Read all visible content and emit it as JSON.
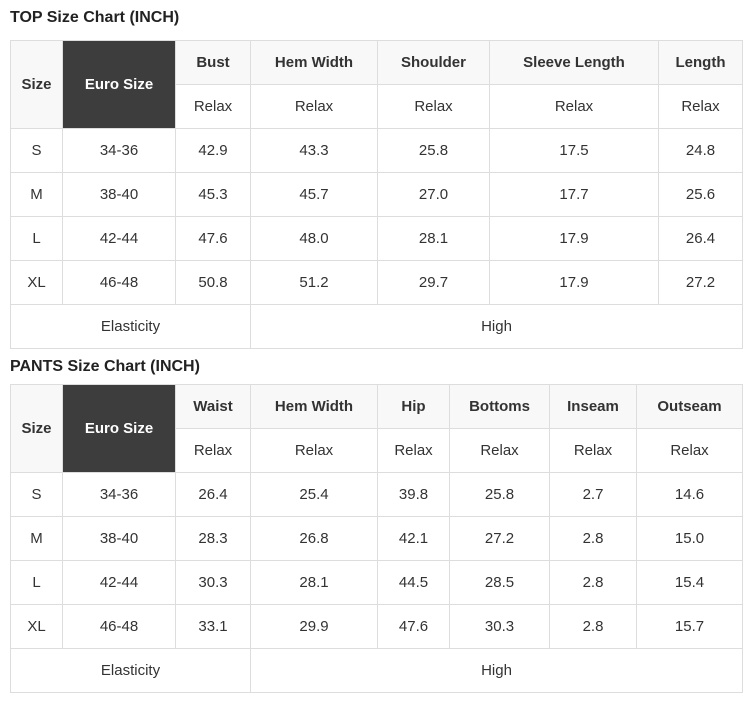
{
  "colors": {
    "dark_header_bg": "#3d3d3d",
    "dark_header_text": "#ffffff",
    "light_header_bg": "#f8f8f8",
    "border": "#dddddd",
    "text": "#333333",
    "title_text": "#222222"
  },
  "top_chart": {
    "title": "TOP Size Chart (INCH)",
    "size_header": "Size",
    "euro_size_header": "Euro Size",
    "measures": [
      {
        "name": "Bust",
        "fit": "Relax"
      },
      {
        "name": "Hem Width",
        "fit": "Relax"
      },
      {
        "name": "Shoulder",
        "fit": "Relax"
      },
      {
        "name": "Sleeve Length",
        "fit": "Relax"
      },
      {
        "name": "Length",
        "fit": "Relax"
      }
    ],
    "rows": [
      {
        "size": "S",
        "euro_size": "34-36",
        "values": [
          "42.9",
          "43.3",
          "25.8",
          "17.5",
          "24.8"
        ]
      },
      {
        "size": "M",
        "euro_size": "38-40",
        "values": [
          "45.3",
          "45.7",
          "27.0",
          "17.7",
          "25.6"
        ]
      },
      {
        "size": "L",
        "euro_size": "42-44",
        "values": [
          "47.6",
          "48.0",
          "28.1",
          "17.9",
          "26.4"
        ]
      },
      {
        "size": "XL",
        "euro_size": "46-48",
        "values": [
          "50.8",
          "51.2",
          "29.7",
          "17.9",
          "27.2"
        ]
      }
    ],
    "elasticity_label": "Elasticity",
    "elasticity_value": "High"
  },
  "pants_chart": {
    "title": "PANTS Size Chart (INCH)",
    "size_header": "Size",
    "euro_size_header": "Euro Size",
    "measures": [
      {
        "name": "Waist",
        "fit": "Relax"
      },
      {
        "name": "Hem Width",
        "fit": "Relax"
      },
      {
        "name": "Hip",
        "fit": "Relax"
      },
      {
        "name": "Bottoms",
        "fit": "Relax"
      },
      {
        "name": "Inseam",
        "fit": "Relax"
      },
      {
        "name": "Outseam",
        "fit": "Relax"
      }
    ],
    "rows": [
      {
        "size": "S",
        "euro_size": "34-36",
        "values": [
          "26.4",
          "25.4",
          "39.8",
          "25.8",
          "2.7",
          "14.6"
        ]
      },
      {
        "size": "M",
        "euro_size": "38-40",
        "values": [
          "28.3",
          "26.8",
          "42.1",
          "27.2",
          "2.8",
          "15.0"
        ]
      },
      {
        "size": "L",
        "euro_size": "42-44",
        "values": [
          "30.3",
          "28.1",
          "44.5",
          "28.5",
          "2.8",
          "15.4"
        ]
      },
      {
        "size": "XL",
        "euro_size": "46-48",
        "values": [
          "33.1",
          "29.9",
          "47.6",
          "30.3",
          "2.8",
          "15.7"
        ]
      }
    ],
    "elasticity_label": "Elasticity",
    "elasticity_value": "High"
  }
}
